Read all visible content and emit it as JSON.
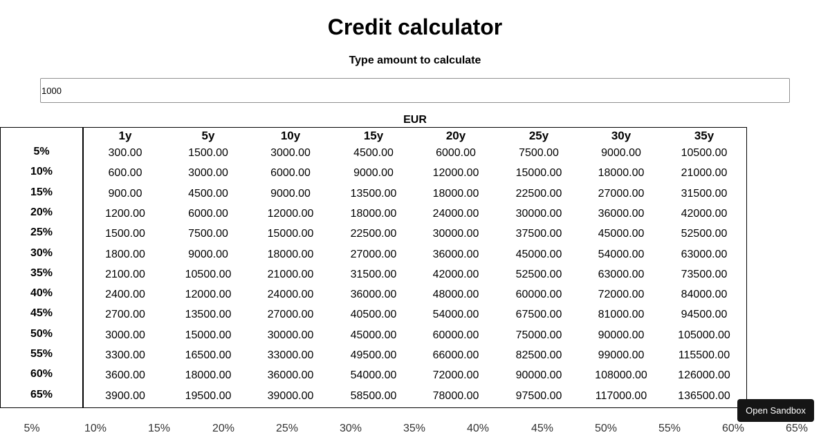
{
  "header": {
    "title": "Credit calculator",
    "subtitle": "Type amount to calculate"
  },
  "amount_input": {
    "value": "1000"
  },
  "currency": "EUR",
  "table": {
    "terms": [
      "1y",
      "5y",
      "10y",
      "15y",
      "20y",
      "25y",
      "30y",
      "35y"
    ],
    "rates": [
      "5%",
      "10%",
      "15%",
      "20%",
      "25%",
      "30%",
      "35%",
      "40%",
      "45%",
      "50%",
      "55%",
      "60%",
      "65%"
    ],
    "rows": [
      [
        "300.00",
        "1500.00",
        "3000.00",
        "4500.00",
        "6000.00",
        "7500.00",
        "9000.00",
        "10500.00"
      ],
      [
        "600.00",
        "3000.00",
        "6000.00",
        "9000.00",
        "12000.00",
        "15000.00",
        "18000.00",
        "21000.00"
      ],
      [
        "900.00",
        "4500.00",
        "9000.00",
        "13500.00",
        "18000.00",
        "22500.00",
        "27000.00",
        "31500.00"
      ],
      [
        "1200.00",
        "6000.00",
        "12000.00",
        "18000.00",
        "24000.00",
        "30000.00",
        "36000.00",
        "42000.00"
      ],
      [
        "1500.00",
        "7500.00",
        "15000.00",
        "22500.00",
        "30000.00",
        "37500.00",
        "45000.00",
        "52500.00"
      ],
      [
        "1800.00",
        "9000.00",
        "18000.00",
        "27000.00",
        "36000.00",
        "45000.00",
        "54000.00",
        "63000.00"
      ],
      [
        "2100.00",
        "10500.00",
        "21000.00",
        "31500.00",
        "42000.00",
        "52500.00",
        "63000.00",
        "73500.00"
      ],
      [
        "2400.00",
        "12000.00",
        "24000.00",
        "36000.00",
        "48000.00",
        "60000.00",
        "72000.00",
        "84000.00"
      ],
      [
        "2700.00",
        "13500.00",
        "27000.00",
        "40500.00",
        "54000.00",
        "67500.00",
        "81000.00",
        "94500.00"
      ],
      [
        "3000.00",
        "15000.00",
        "30000.00",
        "45000.00",
        "60000.00",
        "75000.00",
        "90000.00",
        "105000.00"
      ],
      [
        "3300.00",
        "16500.00",
        "33000.00",
        "49500.00",
        "66000.00",
        "82500.00",
        "99000.00",
        "115500.00"
      ],
      [
        "3600.00",
        "18000.00",
        "36000.00",
        "54000.00",
        "72000.00",
        "90000.00",
        "108000.00",
        "126000.00"
      ],
      [
        "3900.00",
        "19500.00",
        "39000.00",
        "58500.00",
        "78000.00",
        "97500.00",
        "117000.00",
        "136500.00"
      ]
    ]
  },
  "footer_rates": [
    "5%",
    "10%",
    "15%",
    "20%",
    "25%",
    "30%",
    "35%",
    "40%",
    "45%",
    "50%",
    "55%",
    "60%",
    "65%"
  ],
  "sandbox_button": {
    "label": "Open Sandbox"
  }
}
